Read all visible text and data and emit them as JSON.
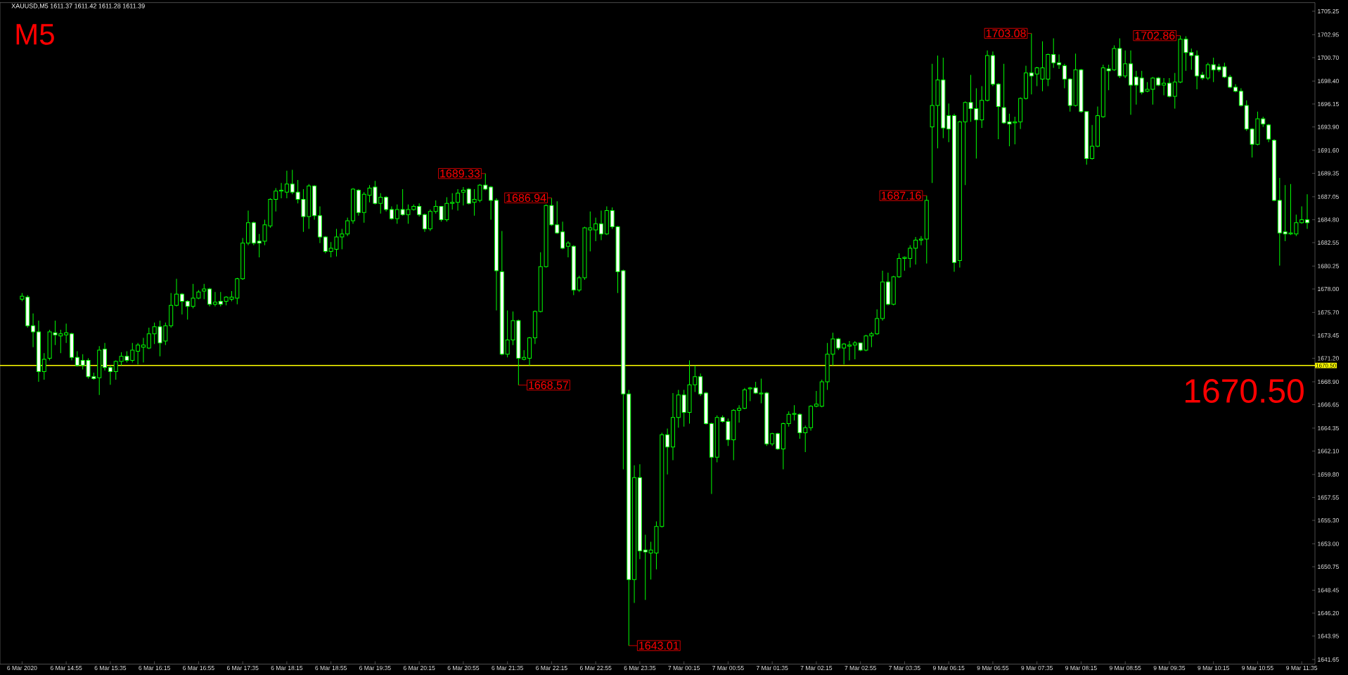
{
  "chart_data": {
    "type": "candlestick",
    "title": "XAUUSD,M5  1611.37 1611.42 1611.28 1611.39",
    "annotations": [
      "M5",
      "1670.50",
      "1689.33",
      "1686.94",
      "1668.57",
      "1643.01",
      "1687.16",
      "1703.08",
      "1702.86"
    ],
    "color": "#00ff00",
    "categories": [
      "6 Mar 2020",
      null,
      null,
      null,
      null,
      null,
      null,
      null,
      "6 Mar 14:55",
      null,
      null,
      null,
      null,
      null,
      null,
      null,
      "6 Mar 15:35",
      null,
      null,
      null,
      null,
      null,
      null,
      null,
      "6 Mar 16:15",
      null,
      null,
      null,
      null,
      null,
      null,
      null,
      "6 Mar 16:55",
      null,
      null,
      null,
      null,
      null,
      null,
      null,
      "6 Mar 17:35",
      null,
      null,
      null,
      null,
      null,
      null,
      null,
      "6 Mar 18:15",
      null,
      null,
      null,
      null,
      null,
      null,
      null,
      "6 Mar 18:55",
      null,
      null,
      null,
      null,
      null,
      null,
      null,
      "6 Mar 19:35",
      null,
      null,
      null,
      null,
      null,
      null,
      null,
      "6 Mar 20:15",
      null,
      null,
      null,
      null,
      null,
      null,
      null,
      "6 Mar 20:55",
      null,
      null,
      null,
      null,
      null,
      null,
      null,
      "6 Mar 21:35",
      null,
      null,
      null,
      null,
      null,
      null,
      null,
      "6 Mar 22:15",
      null,
      null,
      null,
      null,
      null,
      null,
      null,
      "6 Mar 22:55",
      null,
      null,
      null,
      null,
      null,
      null,
      null,
      "6 Mar 23:35",
      null,
      null,
      null,
      null,
      null,
      null,
      null,
      "7 Mar 00:15",
      null,
      null,
      null,
      null,
      null,
      null,
      null,
      "7 Mar 00:55",
      null,
      null,
      null,
      null,
      null,
      null,
      null,
      "7 Mar 01:35",
      null,
      null,
      null,
      null,
      null,
      null,
      null,
      "7 Mar 02:15",
      null,
      null,
      null,
      null,
      null,
      null,
      null,
      "7 Mar 02:55",
      null,
      null,
      null,
      null,
      null,
      null,
      null,
      "7 Mar 03:35",
      null,
      null,
      null,
      null,
      null,
      null,
      null,
      "9 Mar 06:15",
      null,
      null,
      null,
      null,
      null,
      null,
      null,
      "9 Mar 06:55",
      null,
      null,
      null,
      null,
      null,
      null,
      null,
      "9 Mar 07:35",
      null,
      null,
      null,
      null,
      null,
      null,
      null,
      "9 Mar 08:15",
      null,
      null,
      null,
      null,
      null,
      null,
      null,
      "9 Mar 08:55",
      null,
      null,
      null,
      null,
      null,
      null,
      null,
      "9 Mar 09:35",
      null,
      null,
      null,
      null,
      null,
      null,
      null,
      "9 Mar 10:15",
      null,
      null,
      null,
      null,
      null,
      null,
      null,
      "9 Mar 10:55",
      null,
      null,
      null,
      null,
      null,
      null,
      null,
      "9 Mar 11:35",
      null
    ],
    "ohlc": [
      [
        1677.0,
        1677.6,
        1676.8,
        1677.3
      ],
      [
        1677.2,
        1677.4,
        1674.2,
        1674.4
      ],
      [
        1674.4,
        1675.6,
        1672.3,
        1673.8
      ],
      [
        1673.8,
        1674.9,
        1668.9,
        1669.9
      ],
      [
        1669.9,
        1671.7,
        1669.1,
        1671.1
      ],
      [
        1671.2,
        1674.0,
        1671.0,
        1673.8
      ],
      [
        1673.7,
        1674.9,
        1672.5,
        1673.5
      ],
      [
        1673.4,
        1674.0,
        1671.7,
        1673.6
      ],
      [
        1673.5,
        1674.6,
        1672.7,
        1673.7
      ],
      [
        1673.6,
        1673.7,
        1671.0,
        1671.3
      ],
      [
        1671.3,
        1671.9,
        1670.4,
        1670.5
      ],
      [
        1671.0,
        1671.6,
        1670.1,
        1670.5
      ],
      [
        1671.0,
        1671.2,
        1669.2,
        1669.4
      ],
      [
        1669.4,
        1669.8,
        1669.1,
        1669.2
      ],
      [
        1669.3,
        1672.4,
        1667.6,
        1672.0
      ],
      [
        1672.1,
        1672.7,
        1670.0,
        1670.3
      ],
      [
        1670.3,
        1670.5,
        1668.6,
        1669.9
      ],
      [
        1669.9,
        1671.0,
        1669.1,
        1670.9
      ],
      [
        1670.9,
        1671.8,
        1670.5,
        1671.4
      ],
      [
        1671.4,
        1671.9,
        1670.8,
        1671.0
      ],
      [
        1671.0,
        1672.7,
        1670.8,
        1672.0
      ],
      [
        1671.9,
        1672.7,
        1670.6,
        1672.5
      ],
      [
        1672.3,
        1673.2,
        1670.8,
        1672.5
      ],
      [
        1672.2,
        1674.2,
        1672.1,
        1673.6
      ],
      [
        1673.6,
        1674.7,
        1672.6,
        1674.3
      ],
      [
        1674.3,
        1674.9,
        1671.4,
        1672.7
      ],
      [
        1672.9,
        1674.7,
        1672.5,
        1674.4
      ],
      [
        1674.4,
        1677.6,
        1674.2,
        1676.4
      ],
      [
        1676.4,
        1679.0,
        1676.3,
        1677.5
      ],
      [
        1677.5,
        1677.6,
        1675.5,
        1676.8
      ],
      [
        1676.8,
        1676.9,
        1675.0,
        1676.3
      ],
      [
        1676.3,
        1678.5,
        1676.1,
        1677.1
      ],
      [
        1677.1,
        1677.9,
        1677.0,
        1677.7
      ],
      [
        1677.8,
        1678.5,
        1677.0,
        1678.0
      ],
      [
        1678.0,
        1678.1,
        1676.3,
        1676.5
      ],
      [
        1676.5,
        1677.7,
        1676.3,
        1676.7
      ],
      [
        1676.8,
        1677.7,
        1676.3,
        1676.5
      ],
      [
        1676.8,
        1677.3,
        1676.4,
        1677.2
      ],
      [
        1677.0,
        1677.8,
        1676.8,
        1677.2
      ],
      [
        1677.1,
        1679.1,
        1676.5,
        1679.0
      ],
      [
        1679.0,
        1683.0,
        1678.9,
        1682.5
      ],
      [
        1682.5,
        1685.7,
        1682.3,
        1684.5
      ],
      [
        1684.5,
        1684.6,
        1682.3,
        1682.5
      ],
      [
        1682.7,
        1683.4,
        1681.1,
        1682.5
      ],
      [
        1682.7,
        1684.8,
        1682.3,
        1684.3
      ],
      [
        1684.2,
        1686.9,
        1684.0,
        1686.8
      ],
      [
        1686.8,
        1687.9,
        1685.6,
        1687.6
      ],
      [
        1687.6,
        1688.4,
        1686.9,
        1687.7
      ],
      [
        1687.5,
        1689.6,
        1686.9,
        1688.3
      ],
      [
        1688.3,
        1689.7,
        1687.3,
        1687.5
      ],
      [
        1687.5,
        1688.7,
        1686.4,
        1686.8
      ],
      [
        1686.8,
        1687.8,
        1683.6,
        1685.1
      ],
      [
        1685.1,
        1688.3,
        1683.9,
        1688.1
      ],
      [
        1688.1,
        1688.2,
        1684.8,
        1685.2
      ],
      [
        1685.2,
        1686.1,
        1682.5,
        1683.1
      ],
      [
        1683.1,
        1683.2,
        1681.5,
        1681.7
      ],
      [
        1681.7,
        1682.6,
        1681.1,
        1682.0
      ],
      [
        1681.9,
        1683.9,
        1681.2,
        1683.1
      ],
      [
        1683.1,
        1683.9,
        1681.9,
        1683.4
      ],
      [
        1683.4,
        1685.0,
        1683.2,
        1684.7
      ],
      [
        1684.7,
        1687.9,
        1684.4,
        1687.8
      ],
      [
        1687.7,
        1687.8,
        1685.2,
        1685.5
      ],
      [
        1685.5,
        1687.5,
        1684.5,
        1687.3
      ],
      [
        1687.2,
        1688.2,
        1686.5,
        1687.9
      ],
      [
        1688.0,
        1688.6,
        1686.3,
        1686.4
      ],
      [
        1686.4,
        1687.4,
        1685.4,
        1687.0
      ],
      [
        1687.0,
        1687.1,
        1685.6,
        1685.8
      ],
      [
        1685.8,
        1686.1,
        1684.8,
        1684.9
      ],
      [
        1684.9,
        1686.3,
        1684.4,
        1685.8
      ],
      [
        1685.8,
        1687.8,
        1685.2,
        1685.3
      ],
      [
        1685.3,
        1686.3,
        1684.4,
        1685.8
      ],
      [
        1685.8,
        1686.3,
        1685.7,
        1686.1
      ],
      [
        1686.1,
        1686.4,
        1685.1,
        1685.3
      ],
      [
        1685.3,
        1685.4,
        1683.6,
        1683.9
      ],
      [
        1683.9,
        1685.8,
        1683.7,
        1685.6
      ],
      [
        1685.6,
        1686.7,
        1685.4,
        1686.1
      ],
      [
        1686.1,
        1686.1,
        1684.6,
        1684.8
      ],
      [
        1684.8,
        1687.0,
        1684.6,
        1686.4
      ],
      [
        1686.4,
        1687.4,
        1685.8,
        1686.5
      ],
      [
        1686.5,
        1687.8,
        1685.7,
        1687.4
      ],
      [
        1687.5,
        1688.0,
        1686.2,
        1687.7
      ],
      [
        1687.8,
        1687.9,
        1686.3,
        1686.4
      ],
      [
        1686.5,
        1687.8,
        1685.2,
        1686.8
      ],
      [
        1686.7,
        1688.3,
        1686.5,
        1688.2
      ],
      [
        1688.2,
        1689.33,
        1687.7,
        1687.8
      ],
      [
        1688.0,
        1688.1,
        1684.8,
        1686.7
      ],
      [
        1686.7,
        1686.9,
        1675.9,
        1679.8
      ],
      [
        1679.7,
        1683.7,
        1671.5,
        1671.6
      ],
      [
        1671.6,
        1675.9,
        1671.3,
        1673.0
      ],
      [
        1673.0,
        1675.8,
        1672.5,
        1674.9
      ],
      [
        1674.9,
        1675.0,
        1668.57,
        1671.2
      ],
      [
        1671.1,
        1672.0,
        1671.0,
        1671.3
      ],
      [
        1671.2,
        1673.3,
        1670.5,
        1673.2
      ],
      [
        1673.2,
        1675.9,
        1672.6,
        1675.8
      ],
      [
        1675.8,
        1681.6,
        1675.7,
        1680.2
      ],
      [
        1680.2,
        1686.3,
        1680.1,
        1686.2
      ],
      [
        1686.2,
        1686.94,
        1684.2,
        1684.3
      ],
      [
        1684.3,
        1686.6,
        1683.4,
        1683.5
      ],
      [
        1683.6,
        1684.6,
        1681.9,
        1682.0
      ],
      [
        1682.2,
        1682.7,
        1681.1,
        1682.5
      ],
      [
        1682.2,
        1682.3,
        1677.4,
        1677.9
      ],
      [
        1677.9,
        1679.3,
        1677.7,
        1679.1
      ],
      [
        1679.1,
        1684.1,
        1678.9,
        1684.0
      ],
      [
        1683.8,
        1685.6,
        1681.7,
        1684.0
      ],
      [
        1683.8,
        1685.0,
        1682.7,
        1684.4
      ],
      [
        1684.4,
        1685.7,
        1682.8,
        1683.4
      ],
      [
        1683.4,
        1686.1,
        1683.3,
        1685.7
      ],
      [
        1685.7,
        1686.0,
        1683.9,
        1684.1
      ],
      [
        1684.1,
        1684.2,
        1677.6,
        1679.7
      ],
      [
        1679.8,
        1679.9,
        1660.3,
        1667.7
      ],
      [
        1667.7,
        1668.1,
        1643.01,
        1649.5
      ],
      [
        1649.5,
        1660.7,
        1647.2,
        1659.5
      ],
      [
        1659.5,
        1660.8,
        1651.5,
        1652.3
      ],
      [
        1652.4,
        1653.9,
        1647.5,
        1652.2
      ],
      [
        1652.1,
        1653.2,
        1649.5,
        1652.4
      ],
      [
        1652.1,
        1655.2,
        1650.5,
        1654.7
      ],
      [
        1654.7,
        1663.9,
        1654.6,
        1663.7
      ],
      [
        1663.7,
        1664.3,
        1659.8,
        1662.5
      ],
      [
        1662.5,
        1667.8,
        1661.2,
        1665.4
      ],
      [
        1665.4,
        1668.1,
        1664.4,
        1667.6
      ],
      [
        1667.6,
        1668.1,
        1664.5,
        1665.9
      ],
      [
        1665.9,
        1671.0,
        1664.8,
        1668.6
      ],
      [
        1668.6,
        1670.5,
        1667.9,
        1669.4
      ],
      [
        1669.4,
        1669.7,
        1667.5,
        1667.7
      ],
      [
        1667.8,
        1667.9,
        1664.7,
        1664.8
      ],
      [
        1664.8,
        1664.9,
        1657.9,
        1661.5
      ],
      [
        1661.5,
        1665.6,
        1661.0,
        1665.4
      ],
      [
        1665.4,
        1665.6,
        1664.9,
        1665.0
      ],
      [
        1665.0,
        1665.3,
        1662.6,
        1663.2
      ],
      [
        1663.2,
        1666.2,
        1661.2,
        1666.1
      ],
      [
        1666.1,
        1666.6,
        1664.9,
        1666.3
      ],
      [
        1666.3,
        1668.3,
        1666.2,
        1668.1
      ],
      [
        1668.2,
        1668.4,
        1667.0,
        1668.3
      ],
      [
        1668.3,
        1668.9,
        1667.7,
        1667.8
      ],
      [
        1667.7,
        1669.2,
        1666.8,
        1667.8
      ],
      [
        1667.8,
        1667.9,
        1662.6,
        1662.8
      ],
      [
        1662.8,
        1663.9,
        1662.6,
        1663.8
      ],
      [
        1663.8,
        1663.9,
        1662.2,
        1662.3
      ],
      [
        1662.3,
        1664.9,
        1660.3,
        1664.8
      ],
      [
        1664.8,
        1666.0,
        1664.5,
        1665.7
      ],
      [
        1665.7,
        1666.6,
        1665.1,
        1665.8
      ],
      [
        1665.7,
        1665.8,
        1663.3,
        1663.9
      ],
      [
        1663.9,
        1664.6,
        1662.0,
        1664.4
      ],
      [
        1664.4,
        1666.6,
        1664.1,
        1666.5
      ],
      [
        1666.5,
        1668.0,
        1666.4,
        1666.7
      ],
      [
        1666.5,
        1669.1,
        1666.4,
        1668.9
      ],
      [
        1668.9,
        1672.7,
        1668.1,
        1671.6
      ],
      [
        1671.6,
        1673.7,
        1670.5,
        1673.1
      ],
      [
        1673.1,
        1673.2,
        1672.0,
        1672.2
      ],
      [
        1672.2,
        1672.7,
        1670.6,
        1672.6
      ],
      [
        1672.4,
        1672.9,
        1671.0,
        1672.5
      ],
      [
        1672.5,
        1672.9,
        1671.1,
        1672.7
      ],
      [
        1672.7,
        1672.7,
        1671.9,
        1672.0
      ],
      [
        1672.0,
        1673.5,
        1671.9,
        1673.4
      ],
      [
        1673.4,
        1673.8,
        1672.3,
        1673.6
      ],
      [
        1673.6,
        1676.0,
        1673.5,
        1675.1
      ],
      [
        1675.1,
        1679.8,
        1674.9,
        1678.7
      ],
      [
        1678.7,
        1679.6,
        1676.4,
        1676.5
      ],
      [
        1676.5,
        1679.3,
        1676.4,
        1679.2
      ],
      [
        1679.2,
        1681.5,
        1679.1,
        1681.0
      ],
      [
        1681.0,
        1681.2,
        1679.8,
        1681.1
      ],
      [
        1681.0,
        1682.3,
        1680.1,
        1682.0
      ],
      [
        1682.0,
        1683.1,
        1680.4,
        1682.8
      ],
      [
        1682.8,
        1683.2,
        1682.3,
        1682.9
      ],
      [
        1682.9,
        1687.16,
        1680.5,
        1686.7
      ],
      [
        1693.9,
        1700.1,
        1688.4,
        1696.0
      ],
      [
        1696.0,
        1700.9,
        1691.8,
        1698.5
      ],
      [
        1698.5,
        1700.7,
        1692.8,
        1693.8
      ],
      [
        1695.0,
        1696.2,
        1692.4,
        1693.7
      ],
      [
        1695.0,
        1695.2,
        1679.7,
        1680.6
      ],
      [
        1680.8,
        1694.5,
        1680.1,
        1694.4
      ],
      [
        1694.4,
        1696.4,
        1688.2,
        1696.3
      ],
      [
        1696.3,
        1699.0,
        1694.4,
        1695.7
      ],
      [
        1695.7,
        1697.7,
        1690.8,
        1694.6
      ],
      [
        1694.6,
        1697.9,
        1693.8,
        1696.5
      ],
      [
        1696.5,
        1701.4,
        1696.4,
        1700.9
      ],
      [
        1700.9,
        1701.3,
        1697.9,
        1698.1
      ],
      [
        1698.1,
        1698.2,
        1692.7,
        1695.9
      ],
      [
        1695.8,
        1700.1,
        1694.2,
        1694.3
      ],
      [
        1694.4,
        1695.2,
        1692.0,
        1694.2
      ],
      [
        1694.3,
        1694.9,
        1692.2,
        1694.4
      ],
      [
        1694.4,
        1696.8,
        1693.7,
        1696.7
      ],
      [
        1696.7,
        1699.9,
        1696.6,
        1699.2
      ],
      [
        1699.2,
        1703.08,
        1697.1,
        1698.9
      ],
      [
        1699.1,
        1699.8,
        1697.9,
        1699.7
      ],
      [
        1698.6,
        1702.3,
        1697.4,
        1699.7
      ],
      [
        1698.6,
        1701.1,
        1697.9,
        1701.0
      ],
      [
        1701.0,
        1702.6,
        1699.7,
        1700.2
      ],
      [
        1700.2,
        1701.0,
        1699.6,
        1700.0
      ],
      [
        1699.9,
        1700.1,
        1697.7,
        1698.6
      ],
      [
        1698.6,
        1698.7,
        1695.4,
        1696.0
      ],
      [
        1696.0,
        1701.1,
        1695.9,
        1699.5
      ],
      [
        1699.5,
        1699.6,
        1695.3,
        1695.4
      ],
      [
        1695.4,
        1695.4,
        1690.2,
        1690.8
      ],
      [
        1690.8,
        1694.1,
        1690.7,
        1692.0
      ],
      [
        1692.0,
        1695.9,
        1691.9,
        1695.0
      ],
      [
        1694.9,
        1700.0,
        1694.8,
        1699.7
      ],
      [
        1699.6,
        1700.0,
        1697.5,
        1699.4
      ],
      [
        1699.5,
        1701.9,
        1699.4,
        1701.6
      ],
      [
        1701.6,
        1702.6,
        1698.7,
        1698.9
      ],
      [
        1698.9,
        1701.4,
        1698.7,
        1700.1
      ],
      [
        1700.1,
        1701.4,
        1695.1,
        1698.0
      ],
      [
        1698.8,
        1699.4,
        1696.1,
        1698.0
      ],
      [
        1698.7,
        1699.4,
        1697.1,
        1697.3
      ],
      [
        1697.4,
        1698.3,
        1697.3,
        1697.6
      ],
      [
        1697.6,
        1698.8,
        1696.1,
        1698.7
      ],
      [
        1698.7,
        1698.8,
        1697.9,
        1698.0
      ],
      [
        1698.0,
        1698.7,
        1697.0,
        1698.2
      ],
      [
        1698.2,
        1698.7,
        1696.8,
        1696.9
      ],
      [
        1696.9,
        1699.2,
        1695.7,
        1698.3
      ],
      [
        1698.3,
        1702.86,
        1698.2,
        1702.5
      ],
      [
        1702.5,
        1702.8,
        1699.4,
        1701.2
      ],
      [
        1701.2,
        1701.6,
        1699.5,
        1700.9
      ],
      [
        1700.9,
        1701.4,
        1697.6,
        1698.9
      ],
      [
        1699.0,
        1699.3,
        1698.5,
        1698.7
      ],
      [
        1698.7,
        1700.2,
        1698.5,
        1700.0
      ],
      [
        1700.0,
        1700.7,
        1698.3,
        1699.5
      ],
      [
        1699.8,
        1700.1,
        1699.3,
        1699.5
      ],
      [
        1699.8,
        1700.2,
        1698.7,
        1698.8
      ],
      [
        1698.8,
        1699.0,
        1697.7,
        1697.8
      ],
      [
        1697.8,
        1698.1,
        1697.3,
        1697.4
      ],
      [
        1697.4,
        1697.7,
        1695.9,
        1696.0
      ],
      [
        1696.0,
        1696.5,
        1693.5,
        1693.7
      ],
      [
        1693.7,
        1693.8,
        1690.9,
        1692.2
      ],
      [
        1692.2,
        1695.4,
        1692.1,
        1694.7
      ],
      [
        1694.7,
        1694.9,
        1693.9,
        1694.2
      ],
      [
        1694.1,
        1694.2,
        1692.4,
        1692.7
      ],
      [
        1692.6,
        1692.7,
        1686.6,
        1686.7
      ],
      [
        1686.7,
        1688.9,
        1680.3,
        1683.5
      ],
      [
        1683.6,
        1688.2,
        1682.7,
        1683.4
      ],
      [
        1683.4,
        1688.3,
        1683.3,
        1683.5
      ],
      [
        1683.4,
        1685.3,
        1683.2,
        1684.5
      ],
      [
        1684.5,
        1686.1,
        1684.4,
        1684.8
      ],
      [
        1684.8,
        1687.3,
        1683.9,
        1684.5
      ]
    ],
    "ylim": [
      1641.2,
      1706.1
    ],
    "yticks": [
      {
        "value": 1641.65,
        "label": "1641.65"
      },
      {
        "value": 1643.95,
        "label": "1643.95"
      },
      {
        "value": 1646.2,
        "label": "1646.20"
      },
      {
        "value": 1648.45,
        "label": "1648.45"
      },
      {
        "value": 1650.75,
        "label": "1650.75"
      },
      {
        "value": 1653.0,
        "label": "1653.00"
      },
      {
        "value": 1655.3,
        "label": "1655.30"
      },
      {
        "value": 1657.55,
        "label": "1657.55"
      },
      {
        "value": 1659.8,
        "label": "1659.80"
      },
      {
        "value": 1662.1,
        "label": "1662.10"
      },
      {
        "value": 1664.35,
        "label": "1664.35"
      },
      {
        "value": 1666.65,
        "label": "1666.65"
      },
      {
        "value": 1668.9,
        "label": "1668.90"
      },
      {
        "value": 1671.2,
        "label": "1671.20"
      },
      {
        "value": 1673.45,
        "label": "1673.45"
      },
      {
        "value": 1675.7,
        "label": "1675.70"
      },
      {
        "value": 1678.0,
        "label": "1678.00"
      },
      {
        "value": 1680.25,
        "label": "1680.25"
      },
      {
        "value": 1682.55,
        "label": "1682.55"
      },
      {
        "value": 1684.8,
        "label": "1684.80"
      },
      {
        "value": 1687.05,
        "label": "1687.05"
      },
      {
        "value": 1689.35,
        "label": "1689.35"
      },
      {
        "value": 1691.6,
        "label": "1691.60"
      },
      {
        "value": 1693.9,
        "label": "1693.90"
      },
      {
        "value": 1696.15,
        "label": "1696.15"
      },
      {
        "value": 1698.4,
        "label": "1698.40"
      },
      {
        "value": 1700.7,
        "label": "1700.70"
      },
      {
        "value": 1702.95,
        "label": "1702.95"
      },
      {
        "value": 1705.25,
        "label": "1705.25"
      }
    ],
    "ref_lines": [
      {
        "axis": "y",
        "value": 1670.5,
        "label": "1670.50",
        "color": "#ffff00"
      }
    ]
  }
}
